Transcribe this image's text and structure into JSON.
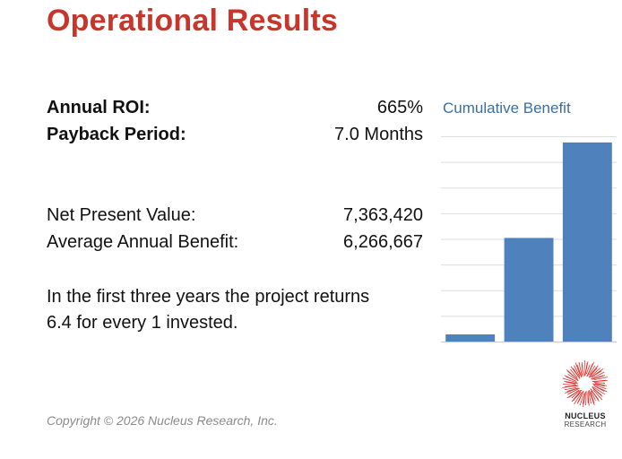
{
  "page": {
    "title": "Operational Results"
  },
  "metrics": {
    "annual_roi_label": "Annual ROI:",
    "annual_roi_value": "665%",
    "payback_label": "Payback Period:",
    "payback_value": "7.0 Months",
    "npv_label": "Net Present Value:",
    "npv_value": "7,363,420",
    "avg_benefit_label": "Average Annual Benefit:",
    "avg_benefit_value": "6,266,667"
  },
  "summary": {
    "line1": "In the first three years the project returns",
    "line2": "6.4 for every 1 invested."
  },
  "chart_title": "Cumulative Benefit",
  "chart_data": {
    "type": "bar",
    "title": "Cumulative Benefit",
    "categories": [
      "",
      "",
      ""
    ],
    "values": [
      0.7,
      10.1,
      19.4
    ],
    "ylim": [
      0,
      20
    ],
    "grid": true,
    "bar_color": "#4f81bd"
  },
  "footer": {
    "copyright": "Copyright © 2026 Nucleus Research, Inc."
  },
  "logo": {
    "icon": "nucleus-burst-icon",
    "line1": "NUCLEUS",
    "line2": "RESEARCH",
    "color": "#d9312b"
  }
}
